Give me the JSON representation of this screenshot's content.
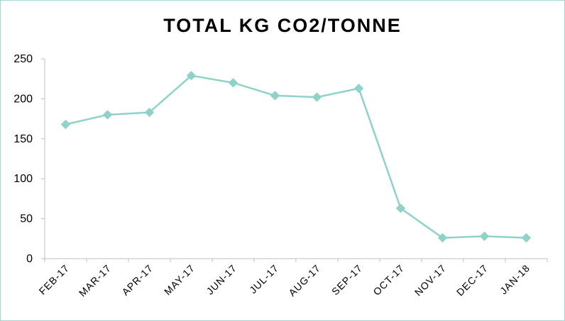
{
  "chart_data": {
    "type": "line",
    "title": "TOTAL KG CO2/TONNE",
    "xlabel": "",
    "ylabel": "",
    "categories": [
      "FEB-17",
      "MAR-17",
      "APR-17",
      "MAY-17",
      "JUN-17",
      "JUL-17",
      "AUG-17",
      "SEP-17",
      "OCT-17",
      "NOV-17",
      "DEC-17",
      "JAN-18"
    ],
    "series": [
      {
        "values": [
          168,
          180,
          183,
          229,
          220,
          204,
          202,
          213,
          63,
          26,
          28,
          26
        ]
      }
    ],
    "ylim": [
      0,
      250
    ],
    "yticks": [
      "0",
      "50",
      "100",
      "150",
      "200",
      "250"
    ],
    "grid": false,
    "line_color": "#8fd3c8",
    "marker": "diamond"
  }
}
